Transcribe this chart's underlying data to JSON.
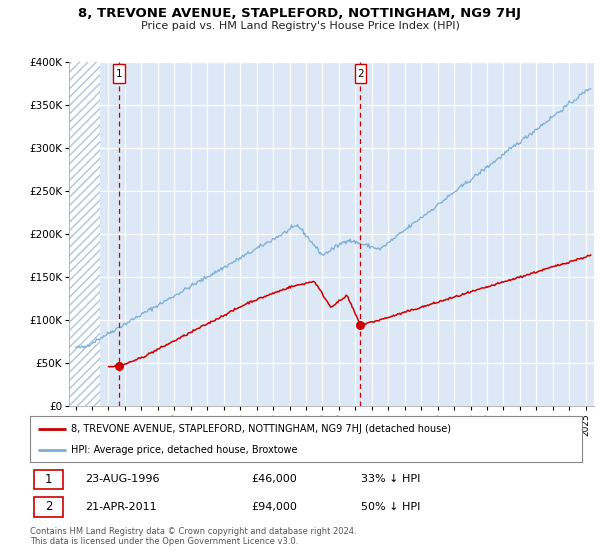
{
  "title": "8, TREVONE AVENUE, STAPLEFORD, NOTTINGHAM, NG9 7HJ",
  "subtitle": "Price paid vs. HM Land Registry's House Price Index (HPI)",
  "bg_color": "#dce8f5",
  "hatch_color": "#c8d8e8",
  "plot_bg_color": "#dce8f5",
  "red_line_color": "#cc0000",
  "blue_line_color": "#7aaed6",
  "marker_color": "#cc0000",
  "vline_color": "#cc0000",
  "ylim": [
    0,
    400000
  ],
  "yticks": [
    0,
    50000,
    100000,
    150000,
    200000,
    250000,
    300000,
    350000,
    400000
  ],
  "ytick_labels": [
    "£0",
    "£50K",
    "£100K",
    "£150K",
    "£200K",
    "£250K",
    "£300K",
    "£350K",
    "£400K"
  ],
  "xlim_start": 1993.6,
  "xlim_end": 2025.5,
  "hatch_end": 1995.5,
  "sale1_x": 1996.64,
  "sale1_y": 46000,
  "sale1_label": "1",
  "sale1_date": "23-AUG-1996",
  "sale1_price": "£46,000",
  "sale1_note": "33% ↓ HPI",
  "sale2_x": 2011.3,
  "sale2_y": 94000,
  "sale2_label": "2",
  "sale2_date": "21-APR-2011",
  "sale2_price": "£94,000",
  "sale2_note": "50% ↓ HPI",
  "legend_label1": "8, TREVONE AVENUE, STAPLEFORD, NOTTINGHAM, NG9 7HJ (detached house)",
  "legend_label2": "HPI: Average price, detached house, Broxtowe",
  "footnote": "Contains HM Land Registry data © Crown copyright and database right 2024.\nThis data is licensed under the Open Government Licence v3.0."
}
